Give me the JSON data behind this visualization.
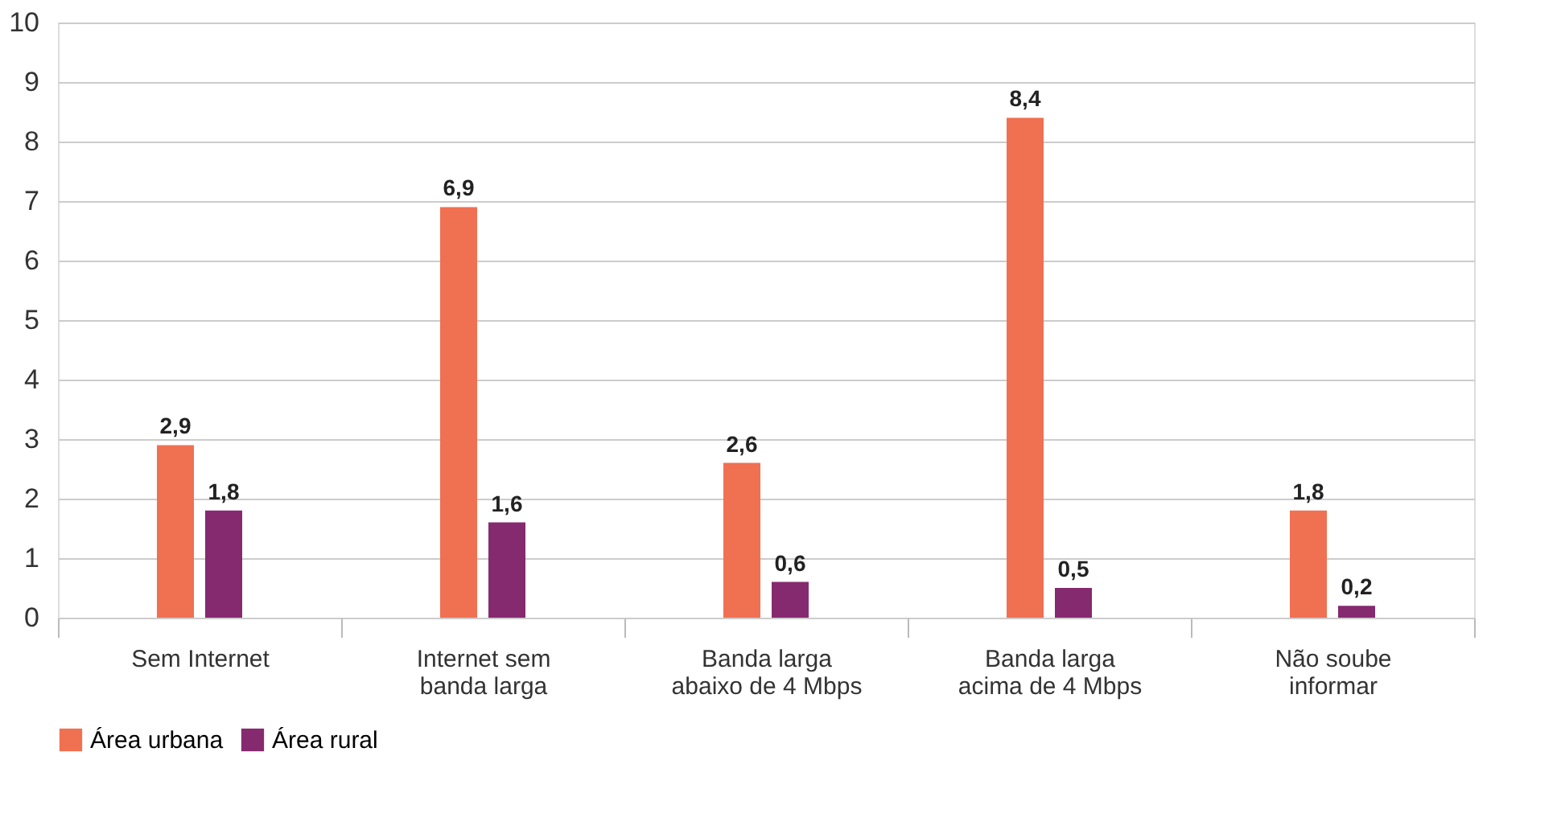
{
  "chart_data": {
    "type": "bar",
    "categories": [
      "Sem Internet",
      "Internet sem\nbanda larga",
      "Banda larga\nabaixo de 4 Mbps",
      "Banda larga\nacima de 4 Mbps",
      "Não soube\ninformar"
    ],
    "series": [
      {
        "name": "Área urbana",
        "color": "#f07052",
        "values": [
          2.9,
          6.9,
          2.6,
          8.4,
          1.8
        ],
        "value_labels": [
          "2,9",
          "6,9",
          "2,6",
          "8,4",
          "1,8"
        ]
      },
      {
        "name": "Área rural",
        "color": "#852a6f",
        "values": [
          1.8,
          1.6,
          0.6,
          0.5,
          0.2
        ],
        "value_labels": [
          "1,8",
          "1,6",
          "0,6",
          "0,5",
          "0,2"
        ]
      }
    ],
    "ylim": [
      0,
      10
    ],
    "yticks": [
      0,
      1,
      2,
      3,
      4,
      5,
      6,
      7,
      8,
      9,
      10
    ],
    "grid": "y",
    "legend": "bottom"
  }
}
